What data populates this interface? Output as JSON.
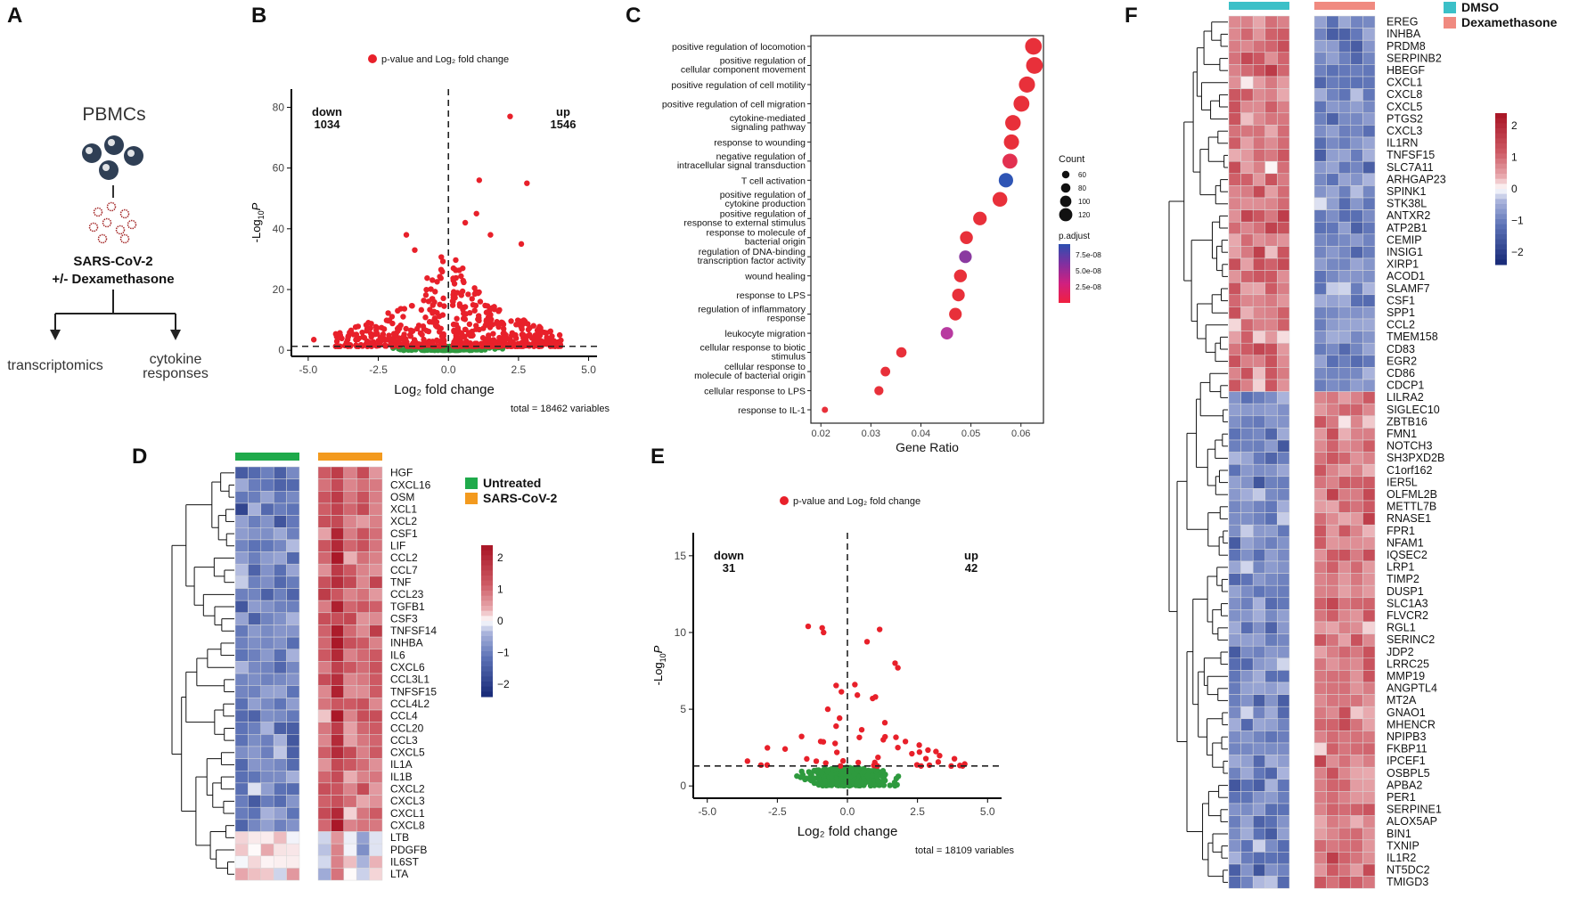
{
  "panel_labels": [
    "A",
    "B",
    "C",
    "D",
    "E",
    "F"
  ],
  "panel_a": {
    "cells_label": "PBMCs",
    "virus_label": "SARS-CoV-2",
    "treatment_label": "+/- Dexamethasone",
    "branch_left": "transcriptomics",
    "branch_right_line1": "cytokine",
    "branch_right_line2": "responses",
    "colors": {
      "cell": "#2f3f55",
      "virus": "#a52a2a"
    }
  },
  "chart_data": [
    {
      "panel": "B",
      "type": "scatter",
      "subtype": "volcano",
      "legend": "p-value and Log₂ fold change",
      "xlabel": "Log₂ fold change",
      "ylabel_main": "-Log",
      "ylabel_sub": "10",
      "ylabel_var": "P",
      "xlim": [
        -5.6,
        5.3
      ],
      "ylim": [
        -2,
        86
      ],
      "xticks": [
        -5.0,
        -2.5,
        0.0,
        2.5,
        5.0
      ],
      "xtick_labels": [
        "-5.0",
        "-2.5",
        "0.0",
        "2.5",
        "5.0"
      ],
      "yticks": [
        0,
        20,
        40,
        60,
        80
      ],
      "ytick_labels": [
        "0",
        "20",
        "40",
        "60",
        "80"
      ],
      "threshold_y": 1.3,
      "threshold_x": 0,
      "down_label": "down",
      "down_count": "1034",
      "up_label": "up",
      "up_count": "1546",
      "total_label": "total = 18462 variables",
      "colors": {
        "sig": "#e8202a",
        "ns": "#2e9a3e"
      },
      "highlight_points": [
        [
          2.2,
          77
        ],
        [
          1.1,
          56
        ],
        [
          2.8,
          55
        ],
        [
          -1.5,
          38
        ],
        [
          -4.8,
          3.5
        ],
        [
          1.0,
          45
        ],
        [
          0.6,
          42
        ],
        [
          2.6,
          35
        ],
        [
          -1.2,
          33
        ],
        [
          1.5,
          38
        ]
      ],
      "seed": 7,
      "sig_up_n": 340,
      "sig_down_n": 240,
      "ns_n": 360
    },
    {
      "panel": "C",
      "type": "scatter",
      "subtype": "dotplot",
      "xlabel": "Gene Ratio",
      "xlim": [
        0.018,
        0.0645
      ],
      "xticks": [
        0.02,
        0.03,
        0.04,
        0.05,
        0.06
      ],
      "xtick_labels": [
        "0.02",
        "0.03",
        "0.04",
        "0.05",
        "0.06"
      ],
      "terms": [
        {
          "l1": "positive regulation of locomotion",
          "l2": "",
          "x": 0.0625,
          "count": 125,
          "color": "#e8303a"
        },
        {
          "l1": "positive regulation of",
          "l2": "cellular component movement",
          "x": 0.0627,
          "count": 125,
          "color": "#e8303a"
        },
        {
          "l1": "positive regulation of cell motility",
          "l2": "",
          "x": 0.0612,
          "count": 120,
          "color": "#e8303a"
        },
        {
          "l1": "positive regulation of cell migration",
          "l2": "",
          "x": 0.0601,
          "count": 118,
          "color": "#e8303a"
        },
        {
          "l1": "cytokine-mediated",
          "l2": "signaling pathway",
          "x": 0.0584,
          "count": 115,
          "color": "#e8303a"
        },
        {
          "l1": "response to wounding",
          "l2": "",
          "x": 0.0581,
          "count": 112,
          "color": "#e8303a"
        },
        {
          "l1": "negative regulation of",
          "l2": "intracellular signal transduction",
          "x": 0.0578,
          "count": 110,
          "color": "#e23050"
        },
        {
          "l1": "T cell activation",
          "l2": "",
          "x": 0.057,
          "count": 105,
          "color": "#2f55b5"
        },
        {
          "l1": "positive regulation of",
          "l2": "cytokine production",
          "x": 0.0558,
          "count": 108,
          "color": "#e8303a"
        },
        {
          "l1": "positive regulation of",
          "l2": "response to external stimulus",
          "x": 0.0518,
          "count": 98,
          "color": "#e8303a"
        },
        {
          "l1": "response to molecule of",
          "l2": "bacterial origin",
          "x": 0.0491,
          "count": 92,
          "color": "#e8303a"
        },
        {
          "l1": "regulation of DNA-binding",
          "l2": "transcription factor activity",
          "x": 0.0489,
          "count": 90,
          "color": "#8a3aa0"
        },
        {
          "l1": "wound healing",
          "l2": "",
          "x": 0.0479,
          "count": 92,
          "color": "#e8303a"
        },
        {
          "l1": "response to LPS",
          "l2": "",
          "x": 0.0475,
          "count": 90,
          "color": "#e8303a"
        },
        {
          "l1": "regulation of inflammatory",
          "l2": "response",
          "x": 0.0469,
          "count": 90,
          "color": "#e8303a"
        },
        {
          "l1": "leukocyte migration",
          "l2": "",
          "x": 0.0452,
          "count": 88,
          "color": "#b83aa0"
        },
        {
          "l1": "cellular response to biotic",
          "l2": "stimulus",
          "x": 0.0361,
          "count": 70,
          "color": "#e8303a"
        },
        {
          "l1": "cellular response to",
          "l2": "molecule of bacterial origin",
          "x": 0.0329,
          "count": 64,
          "color": "#e8303a"
        },
        {
          "l1": "cellular response to LPS",
          "l2": "",
          "x": 0.0316,
          "count": 60,
          "color": "#e8303a"
        },
        {
          "l1": "response to IL-1",
          "l2": "",
          "x": 0.0208,
          "count": 35,
          "color": "#e8303a"
        }
      ],
      "legend_count_title": "Count",
      "legend_counts": [
        60,
        80,
        100,
        120
      ],
      "legend_count_labels": [
        "60",
        "80",
        "100",
        "120"
      ],
      "legend_padj_title": "p.adjust",
      "legend_padj_labels": [
        "7.5e-08",
        "5.0e-08",
        "2.5e-08"
      ],
      "padj_colors": [
        "#2c4fb0",
        "#8030a0",
        "#d02080",
        "#f02040"
      ]
    },
    {
      "panel": "D",
      "type": "heatmap",
      "group1": "Untreated",
      "group2": "SARS-CoV-2",
      "group1_color": "#1faa4b",
      "group2_color": "#f39a1e",
      "genes": [
        "HGF",
        "CXCL16",
        "OSM",
        "XCL1",
        "XCL2",
        "CSF1",
        "LIF",
        "CCL2",
        "CCL7",
        "TNF",
        "CCL23",
        "TGFB1",
        "CSF3",
        "TNFSF14",
        "INHBA",
        "IL6",
        "CXCL6",
        "CCL3L1",
        "TNFSF15",
        "CCL4L2",
        "CCL4",
        "CCL20",
        "CCL3",
        "CXCL5",
        "IL1A",
        "IL1B",
        "CXCL2",
        "CXCL3",
        "CXCL1",
        "CXCL8",
        "LTB",
        "PDGFB",
        "IL6ST",
        "LTA"
      ],
      "n_samples_per_group": 5,
      "scale_labels": [
        "2",
        "1",
        "0",
        "−1",
        "−2"
      ],
      "seed": 11
    },
    {
      "panel": "E",
      "type": "scatter",
      "subtype": "volcano",
      "legend": "p-value and Log₂ fold change",
      "xlabel": "Log₂ fold change",
      "ylabel_main": "-Log",
      "ylabel_sub": "10",
      "ylabel_var": "P",
      "xlim": [
        -5.5,
        5.5
      ],
      "ylim": [
        -0.8,
        16.5
      ],
      "xticks": [
        -5.0,
        -2.5,
        0.0,
        2.5,
        5.0
      ],
      "xtick_labels": [
        "-5.0",
        "-2.5",
        "0.0",
        "2.5",
        "5.0"
      ],
      "yticks": [
        0,
        5,
        10,
        15
      ],
      "ytick_labels": [
        "0",
        "5",
        "10",
        "15"
      ],
      "threshold_y": 1.3,
      "threshold_x": 0,
      "down_label": "down",
      "down_count": "31",
      "up_label": "up",
      "up_count": "42",
      "total_label": "total = 18109 variables",
      "colors": {
        "sig": "#e8202a",
        "ns": "#2e9a3e"
      },
      "highlight_points": [
        [
          -1.4,
          10.4
        ],
        [
          -0.9,
          10.3
        ],
        [
          -0.85,
          10.0
        ],
        [
          1.15,
          10.2
        ],
        [
          1.7,
          8.0
        ],
        [
          1.8,
          7.7
        ],
        [
          0.7,
          9.4
        ],
        [
          1.0,
          5.8
        ],
        [
          0.9,
          5.7
        ],
        [
          -0.7,
          5.0
        ],
        [
          2.3,
          2.1
        ],
        [
          1.8,
          2.5
        ]
      ],
      "seed": 19,
      "sig_up_n": 30,
      "sig_down_n": 19,
      "ns_n": 420
    },
    {
      "panel": "F",
      "type": "heatmap",
      "group1": "DMSO",
      "group2": "Dexamethasone",
      "group1_color": "#3cc0c8",
      "group2_color": "#f08a80",
      "genes": [
        "EREG",
        "INHBA",
        "PRDM8",
        "SERPINB2",
        "HBEGF",
        "CXCL1",
        "CXCL8",
        "CXCL5",
        "PTGS2",
        "CXCL3",
        "IL1RN",
        "TNFSF15",
        "SLC7A11",
        "ARHGAP23",
        "SPINK1",
        "STK38L",
        "ANTXR2",
        "ATP2B1",
        "CEMIP",
        "INSIG1",
        "XIRP1",
        "ACOD1",
        "SLAMF7",
        "CSF1",
        "SPP1",
        "CCL2",
        "TMEM158",
        "CD83",
        "EGR2",
        "CD86",
        "CDCP1",
        "LILRA2",
        "SIGLEC10",
        "ZBTB16",
        "FMN1",
        "NOTCH3",
        "SH3PXD2B",
        "C1orf162",
        "IER5L",
        "OLFML2B",
        "METTL7B",
        "RNASE1",
        "FPR1",
        "NFAM1",
        "IQSEC2",
        "LRP1",
        "TIMP2",
        "DUSP1",
        "SLC1A3",
        "FLVCR2",
        "RGL1",
        "SERINC2",
        "JDP2",
        "LRRC25",
        "MMP19",
        "ANGPTL4",
        "MT2A",
        "GNAO1",
        "MHENCR",
        "NPIPB3",
        "FKBP11",
        "IPCEF1",
        "OSBPL5",
        "APBA2",
        "PER1",
        "SERPINE1",
        "ALOX5AP",
        "BIN1",
        "TXNIP",
        "IL1R2",
        "NT5DC2",
        "TMIGD3"
      ],
      "n_samples_per_group": 5,
      "scale_labels": [
        "2",
        "1",
        "0",
        "−1",
        "−2"
      ],
      "seed": 23
    }
  ]
}
